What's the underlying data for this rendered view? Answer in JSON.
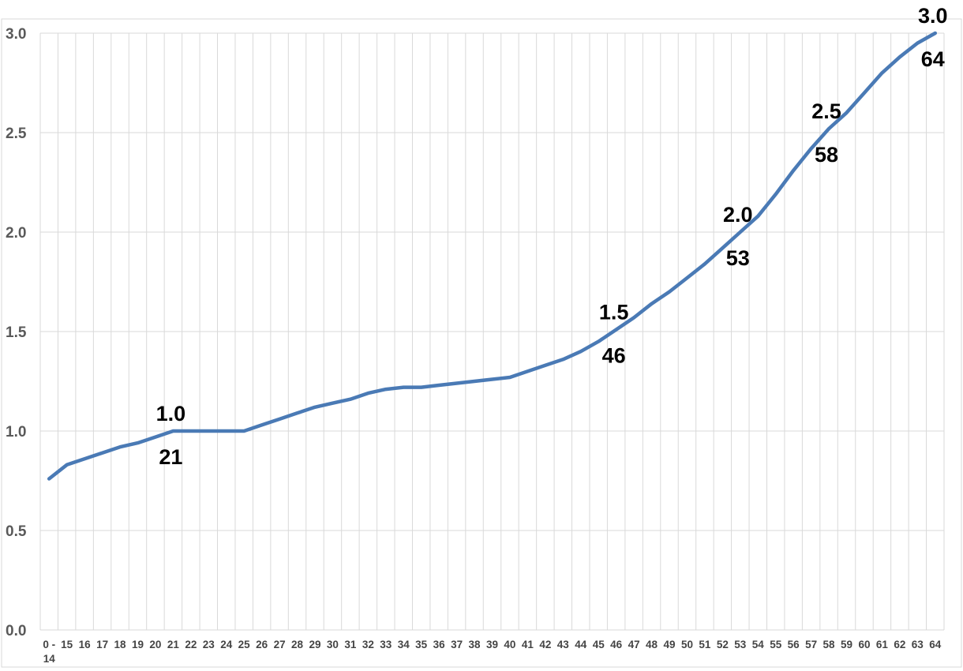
{
  "chart": {
    "series_color": "#4a7ab5",
    "gridline_color": "#d9d9d9",
    "border_color": "#d9d9d9",
    "y_tick_color": "#595959",
    "x_tick_color": "#444444",
    "data_label_color": "#000000",
    "background_color": "#ffffff"
  },
  "chart_data": {
    "type": "line",
    "title": "",
    "xlabel": "",
    "ylabel": "",
    "legend": false,
    "grid": true,
    "ylim": [
      0.0,
      3.0
    ],
    "ytick_step": 0.5,
    "ytick_labels": [
      "0.0",
      "0.5",
      "1.0",
      "1.5",
      "2.0",
      "2.5",
      "3.0"
    ],
    "categories": [
      "0 - 14",
      "15",
      "16",
      "17",
      "18",
      "19",
      "20",
      "21",
      "22",
      "23",
      "24",
      "25",
      "26",
      "27",
      "28",
      "29",
      "30",
      "31",
      "32",
      "33",
      "34",
      "35",
      "36",
      "37",
      "38",
      "39",
      "40",
      "41",
      "42",
      "43",
      "44",
      "45",
      "46",
      "47",
      "48",
      "49",
      "50",
      "51",
      "52",
      "53",
      "54",
      "55",
      "56",
      "57",
      "58",
      "59",
      "60",
      "61",
      "62",
      "63",
      "64"
    ],
    "values": [
      0.76,
      0.83,
      0.86,
      0.89,
      0.92,
      0.94,
      0.97,
      1.0,
      1.0,
      1.0,
      1.0,
      1.0,
      1.03,
      1.06,
      1.09,
      1.12,
      1.14,
      1.16,
      1.19,
      1.21,
      1.22,
      1.22,
      1.23,
      1.24,
      1.25,
      1.26,
      1.27,
      1.3,
      1.33,
      1.36,
      1.4,
      1.45,
      1.51,
      1.57,
      1.64,
      1.7,
      1.77,
      1.84,
      1.92,
      2.0,
      2.08,
      2.19,
      2.31,
      2.42,
      2.52,
      2.6,
      2.7,
      2.8,
      2.88,
      2.95,
      3.0
    ],
    "annotations": [
      {
        "category": "21",
        "value_label": "1.0",
        "category_label": "21"
      },
      {
        "category": "46",
        "value_label": "1.5",
        "category_label": "46"
      },
      {
        "category": "53",
        "value_label": "2.0",
        "category_label": "53"
      },
      {
        "category": "58",
        "value_label": "2.5",
        "category_label": "58"
      },
      {
        "category": "64",
        "value_label": "3.0",
        "category_label": "64"
      }
    ]
  }
}
